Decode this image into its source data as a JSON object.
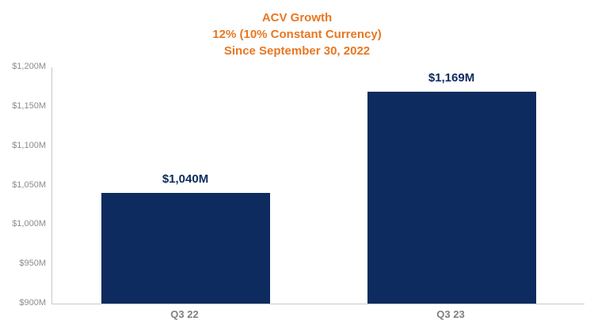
{
  "chart_data": {
    "type": "bar",
    "title_lines": [
      "ACV Growth",
      "12% (10% Constant Currency)",
      "Since September 30, 2022"
    ],
    "categories": [
      "Q3 22",
      "Q3 23"
    ],
    "values": [
      1040,
      1169
    ],
    "value_labels": [
      "$1,040M",
      "$1,169M"
    ],
    "ylim": [
      900,
      1200
    ],
    "ytick_step": 50,
    "ytick_labels": [
      "$900M",
      "$950M",
      "$1,000M",
      "$1,050M",
      "$1,100M",
      "$1,150M",
      "$1,200M"
    ],
    "legend": "none",
    "grid": "off",
    "colors": {
      "title": "#e87722",
      "bar": "#0d2b5e",
      "value_label": "#0d2b5e",
      "axis_text": "#8c8c8c",
      "x_label_text": "#7f7f7f",
      "axis_line": "#c9c9c9"
    }
  }
}
